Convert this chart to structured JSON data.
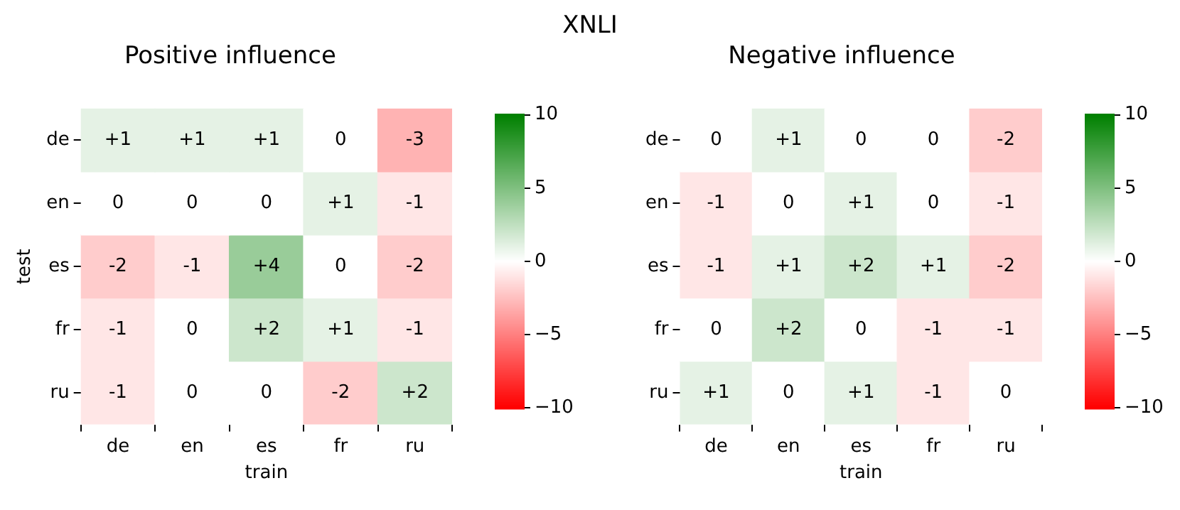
{
  "chart_data": [
    {
      "type": "heatmap",
      "title": "Positive influence",
      "xlabel": "train",
      "ylabel": "test",
      "annotations": [
        "XNLI"
      ],
      "categories": [
        "de",
        "en",
        "es",
        "fr",
        "ru"
      ],
      "y_categories": [
        "de",
        "en",
        "es",
        "fr",
        "ru"
      ],
      "cells": [
        [
          1,
          1,
          1,
          0,
          -3
        ],
        [
          0,
          0,
          0,
          1,
          -1
        ],
        [
          -2,
          -1,
          4,
          0,
          -2
        ],
        [
          -1,
          0,
          2,
          1,
          -1
        ],
        [
          -1,
          0,
          0,
          -2,
          2
        ]
      ],
      "cell_labels": [
        [
          "+1",
          "+1",
          "+1",
          "0",
          "-3"
        ],
        [
          "0",
          "0",
          "0",
          "+1",
          "-1"
        ],
        [
          "-2",
          "-1",
          "+4",
          "0",
          "-2"
        ],
        [
          "-1",
          "0",
          "+2",
          "+1",
          "-1"
        ],
        [
          "-1",
          "0",
          "0",
          "-2",
          "+2"
        ]
      ],
      "clim": [
        -10,
        10
      ],
      "cticks": [
        -10,
        -5,
        0,
        5,
        10
      ],
      "grid": false
    },
    {
      "type": "heatmap",
      "title": "Negative influence",
      "xlabel": "train",
      "categories": [
        "de",
        "en",
        "es",
        "fr",
        "ru"
      ],
      "y_categories": [
        "de",
        "en",
        "es",
        "fr",
        "ru"
      ],
      "cells": [
        [
          0,
          1,
          0,
          0,
          -2
        ],
        [
          -1,
          0,
          1,
          0,
          -1
        ],
        [
          -1,
          1,
          2,
          1,
          -2
        ],
        [
          0,
          2,
          0,
          -1,
          -1
        ],
        [
          1,
          0,
          1,
          -1,
          0
        ]
      ],
      "cell_labels": [
        [
          "0",
          "+1",
          "0",
          "0",
          "-2"
        ],
        [
          "-1",
          "0",
          "+1",
          "0",
          "-1"
        ],
        [
          "-1",
          "+1",
          "+2",
          "+1",
          "-2"
        ],
        [
          "0",
          "+2",
          "0",
          "-1",
          "-1"
        ],
        [
          "+1",
          "0",
          "+1",
          "-1",
          "0"
        ]
      ],
      "clim": [
        -10,
        10
      ],
      "cticks": [
        -10,
        -5,
        0,
        5,
        10
      ],
      "grid": false
    }
  ]
}
